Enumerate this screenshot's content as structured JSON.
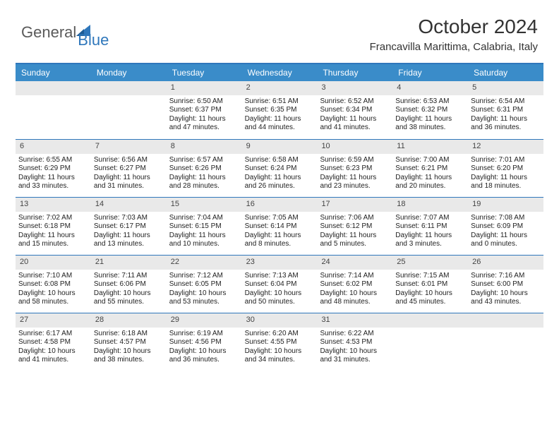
{
  "brand": {
    "general": "General",
    "blue": "Blue"
  },
  "title": "October 2024",
  "location": "Francavilla Marittima, Calabria, Italy",
  "colors": {
    "accent": "#3a8cc9",
    "rule": "#2f77bb",
    "daynum_bg": "#e9e9e9",
    "text": "#222222"
  },
  "dow": [
    "Sunday",
    "Monday",
    "Tuesday",
    "Wednesday",
    "Thursday",
    "Friday",
    "Saturday"
  ],
  "weeks": [
    [
      {
        "n": "",
        "lines": [
          "",
          "",
          ""
        ]
      },
      {
        "n": "",
        "lines": [
          "",
          "",
          ""
        ]
      },
      {
        "n": "1",
        "lines": [
          "Sunrise: 6:50 AM",
          "Sunset: 6:37 PM",
          "Daylight: 11 hours and 47 minutes."
        ]
      },
      {
        "n": "2",
        "lines": [
          "Sunrise: 6:51 AM",
          "Sunset: 6:35 PM",
          "Daylight: 11 hours and 44 minutes."
        ]
      },
      {
        "n": "3",
        "lines": [
          "Sunrise: 6:52 AM",
          "Sunset: 6:34 PM",
          "Daylight: 11 hours and 41 minutes."
        ]
      },
      {
        "n": "4",
        "lines": [
          "Sunrise: 6:53 AM",
          "Sunset: 6:32 PM",
          "Daylight: 11 hours and 38 minutes."
        ]
      },
      {
        "n": "5",
        "lines": [
          "Sunrise: 6:54 AM",
          "Sunset: 6:31 PM",
          "Daylight: 11 hours and 36 minutes."
        ]
      }
    ],
    [
      {
        "n": "6",
        "lines": [
          "Sunrise: 6:55 AM",
          "Sunset: 6:29 PM",
          "Daylight: 11 hours and 33 minutes."
        ]
      },
      {
        "n": "7",
        "lines": [
          "Sunrise: 6:56 AM",
          "Sunset: 6:27 PM",
          "Daylight: 11 hours and 31 minutes."
        ]
      },
      {
        "n": "8",
        "lines": [
          "Sunrise: 6:57 AM",
          "Sunset: 6:26 PM",
          "Daylight: 11 hours and 28 minutes."
        ]
      },
      {
        "n": "9",
        "lines": [
          "Sunrise: 6:58 AM",
          "Sunset: 6:24 PM",
          "Daylight: 11 hours and 26 minutes."
        ]
      },
      {
        "n": "10",
        "lines": [
          "Sunrise: 6:59 AM",
          "Sunset: 6:23 PM",
          "Daylight: 11 hours and 23 minutes."
        ]
      },
      {
        "n": "11",
        "lines": [
          "Sunrise: 7:00 AM",
          "Sunset: 6:21 PM",
          "Daylight: 11 hours and 20 minutes."
        ]
      },
      {
        "n": "12",
        "lines": [
          "Sunrise: 7:01 AM",
          "Sunset: 6:20 PM",
          "Daylight: 11 hours and 18 minutes."
        ]
      }
    ],
    [
      {
        "n": "13",
        "lines": [
          "Sunrise: 7:02 AM",
          "Sunset: 6:18 PM",
          "Daylight: 11 hours and 15 minutes."
        ]
      },
      {
        "n": "14",
        "lines": [
          "Sunrise: 7:03 AM",
          "Sunset: 6:17 PM",
          "Daylight: 11 hours and 13 minutes."
        ]
      },
      {
        "n": "15",
        "lines": [
          "Sunrise: 7:04 AM",
          "Sunset: 6:15 PM",
          "Daylight: 11 hours and 10 minutes."
        ]
      },
      {
        "n": "16",
        "lines": [
          "Sunrise: 7:05 AM",
          "Sunset: 6:14 PM",
          "Daylight: 11 hours and 8 minutes."
        ]
      },
      {
        "n": "17",
        "lines": [
          "Sunrise: 7:06 AM",
          "Sunset: 6:12 PM",
          "Daylight: 11 hours and 5 minutes."
        ]
      },
      {
        "n": "18",
        "lines": [
          "Sunrise: 7:07 AM",
          "Sunset: 6:11 PM",
          "Daylight: 11 hours and 3 minutes."
        ]
      },
      {
        "n": "19",
        "lines": [
          "Sunrise: 7:08 AM",
          "Sunset: 6:09 PM",
          "Daylight: 11 hours and 0 minutes."
        ]
      }
    ],
    [
      {
        "n": "20",
        "lines": [
          "Sunrise: 7:10 AM",
          "Sunset: 6:08 PM",
          "Daylight: 10 hours and 58 minutes."
        ]
      },
      {
        "n": "21",
        "lines": [
          "Sunrise: 7:11 AM",
          "Sunset: 6:06 PM",
          "Daylight: 10 hours and 55 minutes."
        ]
      },
      {
        "n": "22",
        "lines": [
          "Sunrise: 7:12 AM",
          "Sunset: 6:05 PM",
          "Daylight: 10 hours and 53 minutes."
        ]
      },
      {
        "n": "23",
        "lines": [
          "Sunrise: 7:13 AM",
          "Sunset: 6:04 PM",
          "Daylight: 10 hours and 50 minutes."
        ]
      },
      {
        "n": "24",
        "lines": [
          "Sunrise: 7:14 AM",
          "Sunset: 6:02 PM",
          "Daylight: 10 hours and 48 minutes."
        ]
      },
      {
        "n": "25",
        "lines": [
          "Sunrise: 7:15 AM",
          "Sunset: 6:01 PM",
          "Daylight: 10 hours and 45 minutes."
        ]
      },
      {
        "n": "26",
        "lines": [
          "Sunrise: 7:16 AM",
          "Sunset: 6:00 PM",
          "Daylight: 10 hours and 43 minutes."
        ]
      }
    ],
    [
      {
        "n": "27",
        "lines": [
          "Sunrise: 6:17 AM",
          "Sunset: 4:58 PM",
          "Daylight: 10 hours and 41 minutes."
        ]
      },
      {
        "n": "28",
        "lines": [
          "Sunrise: 6:18 AM",
          "Sunset: 4:57 PM",
          "Daylight: 10 hours and 38 minutes."
        ]
      },
      {
        "n": "29",
        "lines": [
          "Sunrise: 6:19 AM",
          "Sunset: 4:56 PM",
          "Daylight: 10 hours and 36 minutes."
        ]
      },
      {
        "n": "30",
        "lines": [
          "Sunrise: 6:20 AM",
          "Sunset: 4:55 PM",
          "Daylight: 10 hours and 34 minutes."
        ]
      },
      {
        "n": "31",
        "lines": [
          "Sunrise: 6:22 AM",
          "Sunset: 4:53 PM",
          "Daylight: 10 hours and 31 minutes."
        ]
      },
      {
        "n": "",
        "lines": [
          "",
          "",
          ""
        ]
      },
      {
        "n": "",
        "lines": [
          "",
          "",
          ""
        ]
      }
    ]
  ]
}
